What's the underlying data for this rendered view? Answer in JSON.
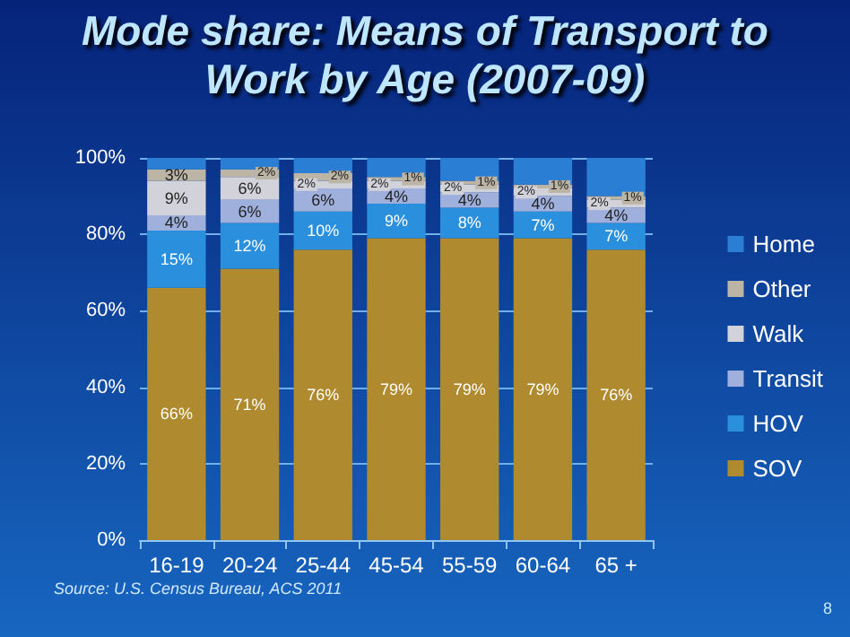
{
  "chart_data": {
    "type": "bar",
    "stacked": true,
    "title": "Mode share: Means of Transport to Work by Age (2007-09)",
    "categories": [
      "16-19",
      "20-24",
      "25-44",
      "45-54",
      "55-59",
      "60-64",
      "65 +"
    ],
    "series": [
      {
        "name": "SOV",
        "color": "#b08a2e",
        "values": [
          66,
          71,
          76,
          79,
          79,
          79,
          76
        ],
        "value_labels": [
          "66%",
          "71%",
          "76%",
          "79%",
          "79%",
          "79%",
          "76%"
        ]
      },
      {
        "name": "HOV",
        "color": "#2a8fdc",
        "values": [
          15,
          12,
          10,
          9,
          8,
          7,
          7
        ],
        "value_labels": [
          "15%",
          "12%",
          "10%",
          "9%",
          "8%",
          "7%",
          "7%"
        ]
      },
      {
        "name": "Transit",
        "color": "#9fb0dc",
        "values": [
          4,
          6,
          6,
          4,
          4,
          4,
          4
        ],
        "value_labels": [
          "4%",
          "6%",
          "6%",
          "4%",
          "4%",
          "4%",
          "4%"
        ]
      },
      {
        "name": "Walk",
        "color": "#d2d2da",
        "values": [
          9,
          6,
          2,
          2,
          2,
          2,
          2
        ],
        "value_labels": [
          "9%",
          "6%",
          "2%",
          "2%",
          "2%",
          "2%",
          "2%"
        ]
      },
      {
        "name": "Other",
        "color": "#bcb4a4",
        "values": [
          3,
          2,
          2,
          1,
          1,
          1,
          1
        ],
        "value_labels": [
          "3%",
          "2%",
          "2%",
          "1%",
          "1%",
          "1%",
          "1%"
        ]
      },
      {
        "name": "Home",
        "color": "#2a7fd4",
        "values": [
          3,
          3,
          4,
          5,
          6,
          7,
          10
        ],
        "value_labels": [
          null,
          null,
          null,
          null,
          null,
          null,
          null
        ]
      }
    ],
    "ylim": [
      0,
      100
    ],
    "yticks": [
      {
        "value": 0,
        "label": "0%"
      },
      {
        "value": 20,
        "label": "20%"
      },
      {
        "value": 40,
        "label": "40%"
      },
      {
        "value": 60,
        "label": "60%"
      },
      {
        "value": 80,
        "label": "80%"
      },
      {
        "value": 100,
        "label": "100%"
      }
    ],
    "grid": "y",
    "legend": "right",
    "annotations": [
      "Source: U.S. Census Bureau, ACS 2011",
      "8"
    ]
  }
}
